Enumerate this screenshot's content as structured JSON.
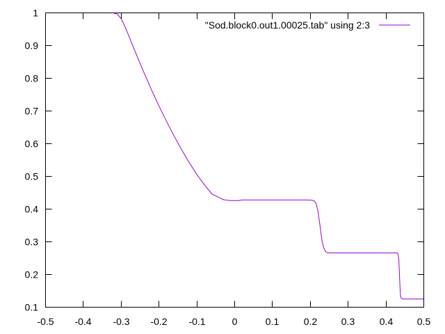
{
  "chart_data": {
    "type": "line",
    "title": "",
    "xlabel": "",
    "ylabel": "",
    "xlim": [
      -0.5,
      0.5
    ],
    "ylim": [
      0.1,
      1.0
    ],
    "xticks": [
      -0.5,
      -0.4,
      -0.3,
      -0.2,
      -0.1,
      0,
      0.1,
      0.2,
      0.3,
      0.4,
      0.5
    ],
    "xtick_labels": [
      "-0.5",
      "-0.4",
      "-0.3",
      "-0.2",
      "-0.1",
      "0",
      "0.1",
      "0.2",
      "0.3",
      "0.4",
      "0.5"
    ],
    "yticks": [
      0.1,
      0.2,
      0.3,
      0.4,
      0.5,
      0.6,
      0.7,
      0.8,
      0.9,
      1.0
    ],
    "ytick_labels": [
      "0.1",
      "0.2",
      "0.3",
      "0.4",
      "0.5",
      "0.6",
      "0.7",
      "0.8",
      "0.9",
      "1"
    ],
    "grid": false,
    "legend_position": "top-right",
    "series": [
      {
        "name": "\"Sod.block0.out1.00025.tab\" using 2:3",
        "color": "#9400d3",
        "x": [
          -0.5,
          -0.32,
          -0.31,
          -0.3,
          -0.29,
          -0.28,
          -0.26,
          -0.24,
          -0.22,
          -0.2,
          -0.18,
          -0.16,
          -0.14,
          -0.12,
          -0.1,
          -0.08,
          -0.06,
          -0.04,
          -0.03,
          -0.02,
          -0.01,
          0.0,
          0.01,
          0.02,
          0.1,
          0.19,
          0.205,
          0.21,
          0.215,
          0.22,
          0.225,
          0.23,
          0.235,
          0.24,
          0.245,
          0.25,
          0.26,
          0.3,
          0.38,
          0.43,
          0.432,
          0.434,
          0.436,
          0.438,
          0.44,
          0.445,
          0.45,
          0.5
        ],
        "y": [
          1.0,
          1.0,
          0.996,
          0.982,
          0.958,
          0.93,
          0.873,
          0.818,
          0.765,
          0.715,
          0.668,
          0.623,
          0.581,
          0.542,
          0.506,
          0.474,
          0.446,
          0.435,
          0.429,
          0.427,
          0.426,
          0.426,
          0.426,
          0.428,
          0.428,
          0.428,
          0.427,
          0.425,
          0.418,
          0.395,
          0.355,
          0.31,
          0.283,
          0.27,
          0.267,
          0.266,
          0.266,
          0.266,
          0.266,
          0.266,
          0.262,
          0.246,
          0.19,
          0.14,
          0.128,
          0.125,
          0.125,
          0.125
        ]
      }
    ]
  }
}
